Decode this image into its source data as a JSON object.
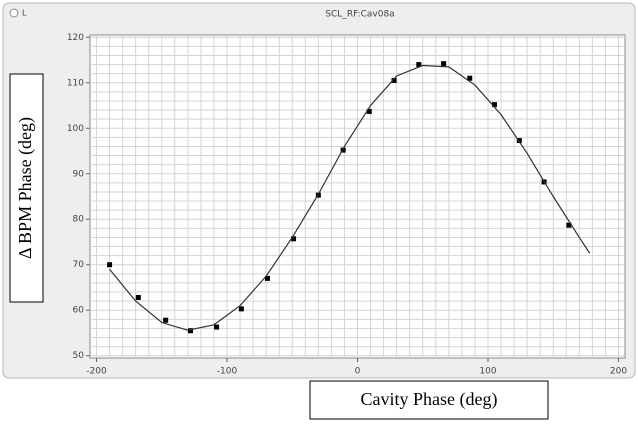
{
  "chart_data": {
    "type": "scatter",
    "title": "SCL_RF:Cav08a",
    "window_icon_label": "L",
    "xlabel": "Cavity Phase (deg)",
    "ylabel": "Δ BPM Phase (deg)",
    "xlim": [
      -205,
      205
    ],
    "ylim": [
      49.5,
      120.5
    ],
    "xticks": [
      -200,
      -100,
      0,
      100,
      200
    ],
    "yticks": [
      50,
      60,
      70,
      80,
      90,
      100,
      110,
      120
    ],
    "grid": true,
    "x_grid_step": 10,
    "y_grid_step": 2,
    "series": [
      {
        "type": "scatter",
        "color": "#000000",
        "x": [
          -190,
          -168,
          -147,
          -128,
          -108,
          -89,
          -69,
          -49,
          -30,
          -11,
          9,
          28,
          47,
          66,
          86,
          105,
          124,
          143,
          162
        ],
        "values": [
          70,
          62.8,
          57.8,
          55.5,
          56.3,
          60.3,
          67,
          75.7,
          85.3,
          95.2,
          103.7,
          110.5,
          114,
          114.2,
          111,
          105.2,
          97.3,
          88.2,
          78.7
        ]
      },
      {
        "type": "line",
        "color": "#333333",
        "x": [
          -190,
          -170,
          -150,
          -130,
          -110,
          -90,
          -70,
          -50,
          -30,
          -10,
          10,
          30,
          50,
          70,
          90,
          110,
          130,
          150,
          170,
          178
        ],
        "values": [
          69,
          62,
          57.3,
          55.6,
          56.8,
          61,
          67.5,
          76,
          85.5,
          96,
          105,
          111.5,
          113.8,
          113.5,
          109.5,
          103,
          94.5,
          85,
          76,
          72.5
        ]
      }
    ]
  }
}
